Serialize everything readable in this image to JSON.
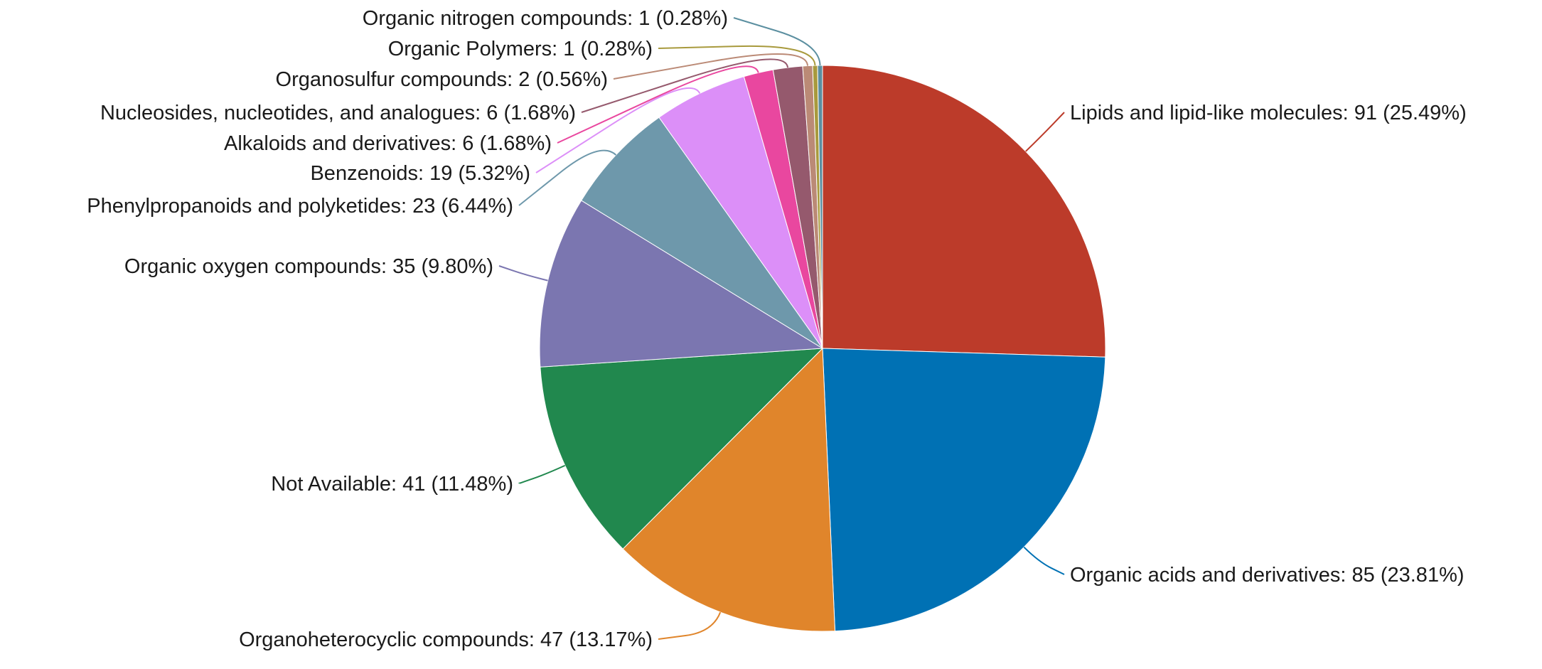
{
  "chart_data": {
    "type": "pie",
    "start_angle_deg": 0,
    "direction": "clockwise",
    "legend": "none",
    "slices": [
      {
        "label": "Lipids and lipid-like molecules: 91 (25.49%)",
        "value": 91,
        "percent": 25.49,
        "color": "#bc3b2a",
        "label_side": "right"
      },
      {
        "label": "Organic acids and derivatives: 85 (23.81%)",
        "value": 85,
        "percent": 23.81,
        "color": "#0071b4",
        "label_side": "right"
      },
      {
        "label": "Organoheterocyclic compounds: 47 (13.17%)",
        "value": 47,
        "percent": 13.17,
        "color": "#e0852b",
        "label_side": "left"
      },
      {
        "label": "Not Available: 41 (11.48%)",
        "value": 41,
        "percent": 11.48,
        "color": "#21884e",
        "label_side": "left"
      },
      {
        "label": "Organic oxygen compounds: 35 (9.80%)",
        "value": 35,
        "percent": 9.8,
        "color": "#7b76b0",
        "label_side": "left"
      },
      {
        "label": "Phenylpropanoids and polyketides: 23 (6.44%)",
        "value": 23,
        "percent": 6.44,
        "color": "#6e98ab",
        "label_side": "left"
      },
      {
        "label": "Benzenoids: 19 (5.32%)",
        "value": 19,
        "percent": 5.32,
        "color": "#dc8ff8",
        "label_side": "left"
      },
      {
        "label": "Alkaloids and derivatives: 6 (1.68%)",
        "value": 6,
        "percent": 1.68,
        "color": "#e9479f",
        "label_side": "left"
      },
      {
        "label": "Nucleosides, nucleotides, and analogues: 6 (1.68%)",
        "value": 6,
        "percent": 1.68,
        "color": "#95596d",
        "label_side": "left"
      },
      {
        "label": "Organosulfur compounds: 2 (0.56%)",
        "value": 2,
        "percent": 0.56,
        "color": "#bb8a76",
        "label_side": "left"
      },
      {
        "label": "Organic Polymers: 1 (0.28%)",
        "value": 1,
        "percent": 0.28,
        "color": "#a89a3d",
        "label_side": "left"
      },
      {
        "label": "Organic nitrogen compounds: 1 (0.28%)",
        "value": 1,
        "percent": 0.28,
        "color": "#5b8fa0",
        "label_side": "left"
      }
    ]
  }
}
